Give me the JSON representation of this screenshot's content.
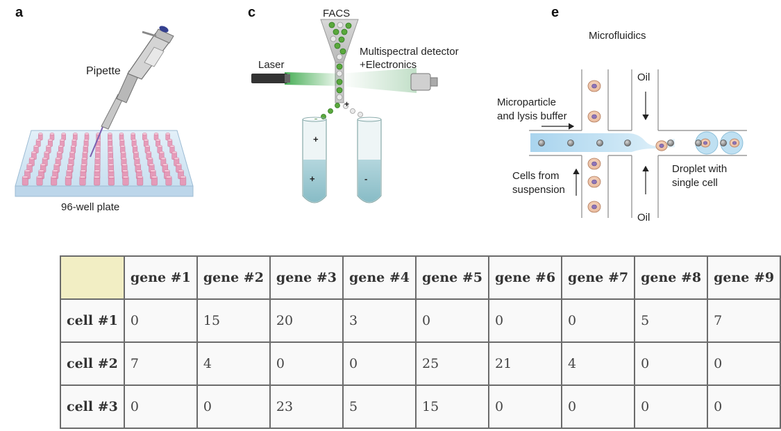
{
  "panels": {
    "a": {
      "letter": "a",
      "pipette_label": "Pipette",
      "plate_label": "96-well plate"
    },
    "c": {
      "letter": "c",
      "title": "FACS",
      "laser_label": "Laser",
      "detector_label_1": "Multispectral detector",
      "detector_label_2": "+Electronics",
      "plus": "+",
      "minus": "-"
    },
    "e": {
      "letter": "e",
      "title": "Microfluidics",
      "oil_top": "Oil",
      "oil_bottom": "Oil",
      "microparticle_1": "Microparticle",
      "microparticle_2": "and lysis buffer",
      "cells_1": "Cells from",
      "cells_2": "suspension",
      "droplet_1": "Droplet with",
      "droplet_2": "single cell"
    }
  },
  "table": {
    "columns": [
      "gene #1",
      "gene #2",
      "gene #3",
      "gene #4",
      "gene #5",
      "gene #6",
      "gene #7",
      "gene #8",
      "gene #9"
    ],
    "rows": [
      {
        "label": "cell #1",
        "values": [
          "0",
          "15",
          "20",
          "3",
          "0",
          "0",
          "0",
          "5",
          "7"
        ]
      },
      {
        "label": "cell #2",
        "values": [
          "7",
          "4",
          "0",
          "0",
          "25",
          "21",
          "4",
          "0",
          "0"
        ]
      },
      {
        "label": "cell #3",
        "values": [
          "0",
          "0",
          "23",
          "5",
          "15",
          "0",
          "0",
          "0",
          "0"
        ]
      }
    ]
  },
  "colors": {
    "header_corner": "#f2eec4",
    "cell_green": "#5aa83c",
    "channel_blue": "#b9dcf0",
    "well_pink": "#e98fb0"
  }
}
